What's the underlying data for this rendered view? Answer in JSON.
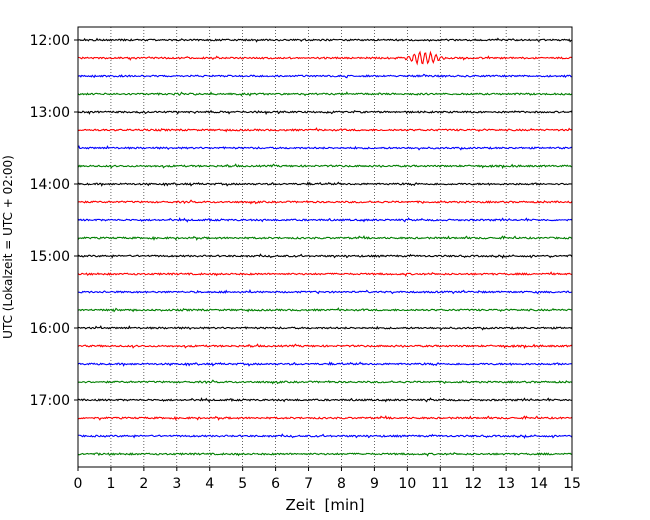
{
  "chart_data": {
    "type": "line",
    "title": "",
    "xlabel": "Zeit  [min]",
    "ylabel": "UTC (Lokalzeit = UTC + 02:00)",
    "xlim": [
      0,
      15
    ],
    "x_ticks": [
      "0",
      "1",
      "2",
      "3",
      "4",
      "5",
      "6",
      "7",
      "8",
      "9",
      "10",
      "11",
      "12",
      "13",
      "14",
      "15"
    ],
    "y_tick_labels": [
      "12:00",
      "13:00",
      "14:00",
      "15:00",
      "16:00",
      "17:00"
    ],
    "trace_start_times": [
      "12:00",
      "12:15",
      "12:30",
      "12:45",
      "13:00",
      "13:15",
      "13:30",
      "13:45",
      "14:00",
      "14:15",
      "14:30",
      "14:45",
      "15:00",
      "15:15",
      "15:30",
      "15:45",
      "16:00",
      "16:15",
      "16:30",
      "16:45",
      "17:00",
      "17:15",
      "17:30",
      "17:45"
    ],
    "trace_colors": [
      "#000000",
      "#ff0000",
      "#0000ff",
      "#007f00"
    ],
    "grid": {
      "x": true,
      "y": false
    },
    "events": [
      {
        "trace": "12:15",
        "x_start": 9.3,
        "x_end": 11.2,
        "peak_min": 10.5,
        "relative_amplitude": 6
      }
    ]
  }
}
